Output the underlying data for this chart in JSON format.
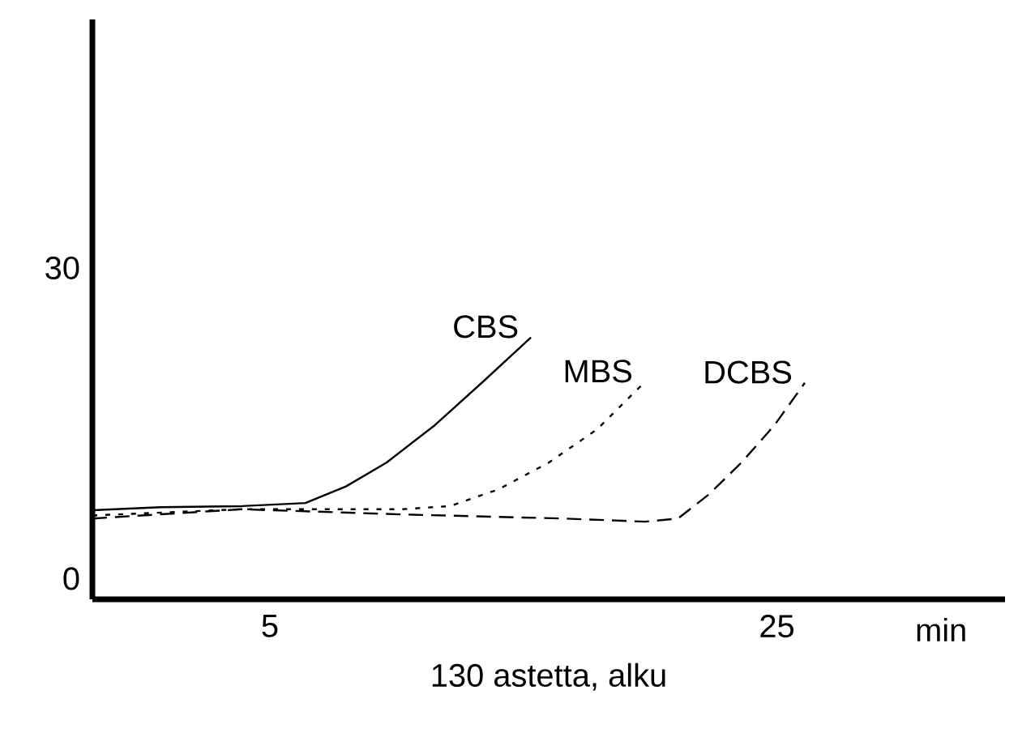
{
  "chart_data": {
    "type": "line",
    "xlabel": "min",
    "annotations": [
      "130 astetta, alku"
    ],
    "xlim": [
      -2,
      34
    ],
    "ylim": [
      -2,
      54
    ],
    "xticks": [
      5,
      25
    ],
    "yticks": [
      0,
      30
    ],
    "grid": false,
    "marker": "none",
    "series": [
      {
        "name": "CBS",
        "color": "#000000",
        "line_style": "solid",
        "x": [
          -2,
          0.7,
          3.9,
          6.4,
          8.0,
          9.6,
          11.5,
          13.4,
          15.3
        ],
        "values": [
          6.6,
          6.9,
          7.0,
          7.3,
          8.9,
          11.2,
          14.8,
          19,
          23.3
        ]
      },
      {
        "name": "MBS",
        "color": "#000000",
        "line_style": "dotted",
        "x": [
          -2,
          3.9,
          10.2,
          12.1,
          14.0,
          16.0,
          17.9,
          19.8
        ],
        "values": [
          6.1,
          6.7,
          6.7,
          7.0,
          8.6,
          11.2,
          14.4,
          19
        ]
      },
      {
        "name": "DCBS",
        "color": "#000000",
        "line_style": "dashed",
        "x": [
          -2,
          3.9,
          10.2,
          16.6,
          19.8,
          21.1,
          22.3,
          23.6,
          24.9,
          26.1
        ],
        "values": [
          5.8,
          6.7,
          6.2,
          5.8,
          5.5,
          5.8,
          8.1,
          11.2,
          14.8,
          18.9
        ]
      }
    ]
  }
}
